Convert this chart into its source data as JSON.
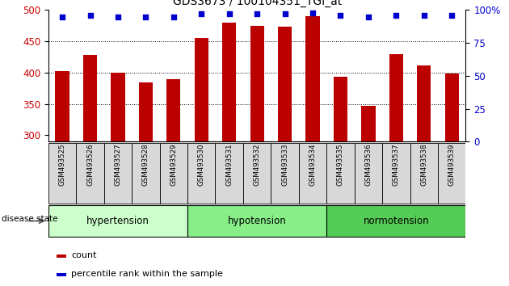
{
  "title": "GDS3673 / 100104351_TGI_at",
  "samples": [
    "GSM493525",
    "GSM493526",
    "GSM493527",
    "GSM493528",
    "GSM493529",
    "GSM493530",
    "GSM493531",
    "GSM493532",
    "GSM493533",
    "GSM493534",
    "GSM493535",
    "GSM493536",
    "GSM493537",
    "GSM493538",
    "GSM493539"
  ],
  "counts": [
    403,
    428,
    400,
    385,
    390,
    455,
    480,
    475,
    473,
    490,
    393,
    347,
    430,
    411,
    399
  ],
  "percentile": [
    95,
    96,
    95,
    95,
    95,
    97,
    97,
    97,
    97,
    98,
    96,
    95,
    96,
    96,
    96
  ],
  "groups": [
    {
      "label": "hypertension",
      "start": 0,
      "end": 5,
      "color": "#ccffcc"
    },
    {
      "label": "hypotension",
      "start": 5,
      "end": 10,
      "color": "#88ee88"
    },
    {
      "label": "normotension",
      "start": 10,
      "end": 15,
      "color": "#55cc55"
    }
  ],
  "ylim": [
    290,
    500
  ],
  "yticks": [
    300,
    350,
    400,
    450,
    500
  ],
  "right_yticks": [
    0,
    25,
    50,
    75,
    100
  ],
  "bar_color": "#bb0000",
  "dot_color": "#0000cc",
  "bar_width": 0.5,
  "grid_color": "#000000",
  "tick_label_color_left": "#cc0000",
  "tick_label_color_right": "#0000cc",
  "legend_count_color": "#bb0000",
  "legend_pct_color": "#0000cc",
  "label_count": "count",
  "label_pct": "percentile rank within the sample",
  "disease_state_label": "disease state"
}
